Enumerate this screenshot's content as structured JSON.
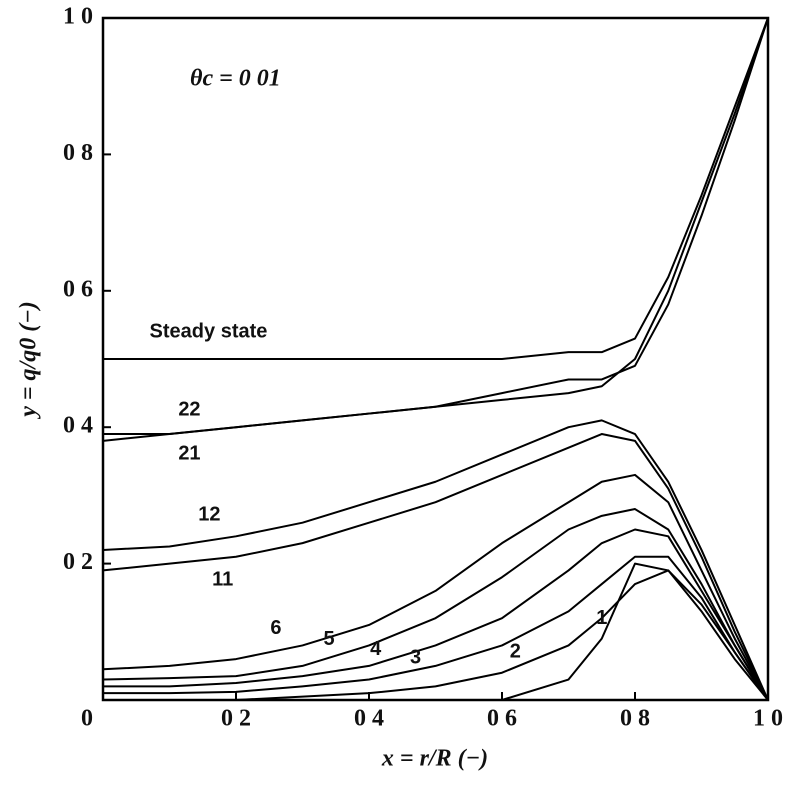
{
  "chart_data": {
    "type": "line",
    "annotation": "θc = 0 01",
    "x_label": "x = r/R (−)",
    "y_label": "y = q/q0 (−)",
    "x": [
      0,
      0.1,
      0.2,
      0.3,
      0.4,
      0.5,
      0.6,
      0.7,
      0.75,
      0.8,
      0.85,
      0.9,
      0.95,
      1.0
    ],
    "series": [
      {
        "name": "Steady state",
        "color": "#000000",
        "values": [
          0.5,
          0.5,
          0.5,
          0.5,
          0.5,
          0.5,
          0.5,
          0.51,
          0.51,
          0.53,
          0.62,
          0.74,
          0.87,
          1.0
        ]
      },
      {
        "name": "22",
        "color": "#000000",
        "values": [
          0.39,
          0.39,
          0.4,
          0.41,
          0.42,
          0.43,
          0.45,
          0.47,
          0.47,
          0.49,
          0.58,
          0.71,
          0.85,
          1.0
        ]
      },
      {
        "name": "21",
        "color": "#000000",
        "values": [
          0.38,
          0.39,
          0.4,
          0.41,
          0.42,
          0.43,
          0.44,
          0.45,
          0.46,
          0.5,
          0.6,
          0.73,
          0.86,
          1.0
        ]
      },
      {
        "name": "12",
        "color": "#000000",
        "values": [
          0.22,
          0.225,
          0.24,
          0.26,
          0.29,
          0.32,
          0.36,
          0.4,
          0.41,
          0.39,
          0.32,
          0.22,
          0.11,
          0
        ]
      },
      {
        "name": "11",
        "color": "#000000",
        "values": [
          0.19,
          0.2,
          0.21,
          0.23,
          0.26,
          0.29,
          0.33,
          0.37,
          0.39,
          0.38,
          0.31,
          0.21,
          0.1,
          0
        ]
      },
      {
        "name": "6",
        "color": "#000000",
        "values": [
          0.045,
          0.05,
          0.06,
          0.08,
          0.11,
          0.16,
          0.23,
          0.29,
          0.32,
          0.33,
          0.29,
          0.19,
          0.09,
          0
        ]
      },
      {
        "name": "5",
        "color": "#000000",
        "values": [
          0.03,
          0.032,
          0.035,
          0.05,
          0.08,
          0.12,
          0.18,
          0.25,
          0.27,
          0.28,
          0.25,
          0.17,
          0.08,
          0
        ]
      },
      {
        "name": "4",
        "color": "#000000",
        "values": [
          0.02,
          0.02,
          0.025,
          0.035,
          0.05,
          0.08,
          0.12,
          0.19,
          0.23,
          0.25,
          0.24,
          0.16,
          0.08,
          0
        ]
      },
      {
        "name": "3",
        "color": "#000000",
        "values": [
          0.01,
          0.01,
          0.012,
          0.02,
          0.03,
          0.05,
          0.08,
          0.13,
          0.17,
          0.21,
          0.21,
          0.15,
          0.07,
          0
        ]
      },
      {
        "name": "2",
        "color": "#000000",
        "values": [
          0,
          0,
          0,
          0.005,
          0.01,
          0.02,
          0.04,
          0.08,
          0.12,
          0.17,
          0.19,
          0.14,
          0.07,
          0
        ]
      },
      {
        "name": "1",
        "color": "#000000",
        "values": [
          0,
          0,
          0,
          0,
          0,
          0,
          0,
          0.03,
          0.09,
          0.2,
          0.19,
          0.13,
          0.06,
          0
        ]
      }
    ],
    "xlim": [
      0,
      1
    ],
    "ylim": [
      0,
      1
    ],
    "xticks": [
      0,
      {
        "value": 0.2,
        "label": "0 2"
      },
      {
        "value": 0.4,
        "label": "0 4"
      },
      {
        "value": 0.6,
        "label": "0 6"
      },
      {
        "value": 0.8,
        "label": "0 8"
      },
      {
        "value": 1,
        "label": "1 0"
      }
    ],
    "yticks": [
      {
        "value": 0.2,
        "label": "0 2"
      },
      {
        "value": 0.4,
        "label": "0 4"
      },
      {
        "value": 0.6,
        "label": "0 6"
      },
      {
        "value": 0.8,
        "label": "0 8"
      },
      {
        "value": 1,
        "label": "1 0"
      }
    ],
    "grid": false
  }
}
